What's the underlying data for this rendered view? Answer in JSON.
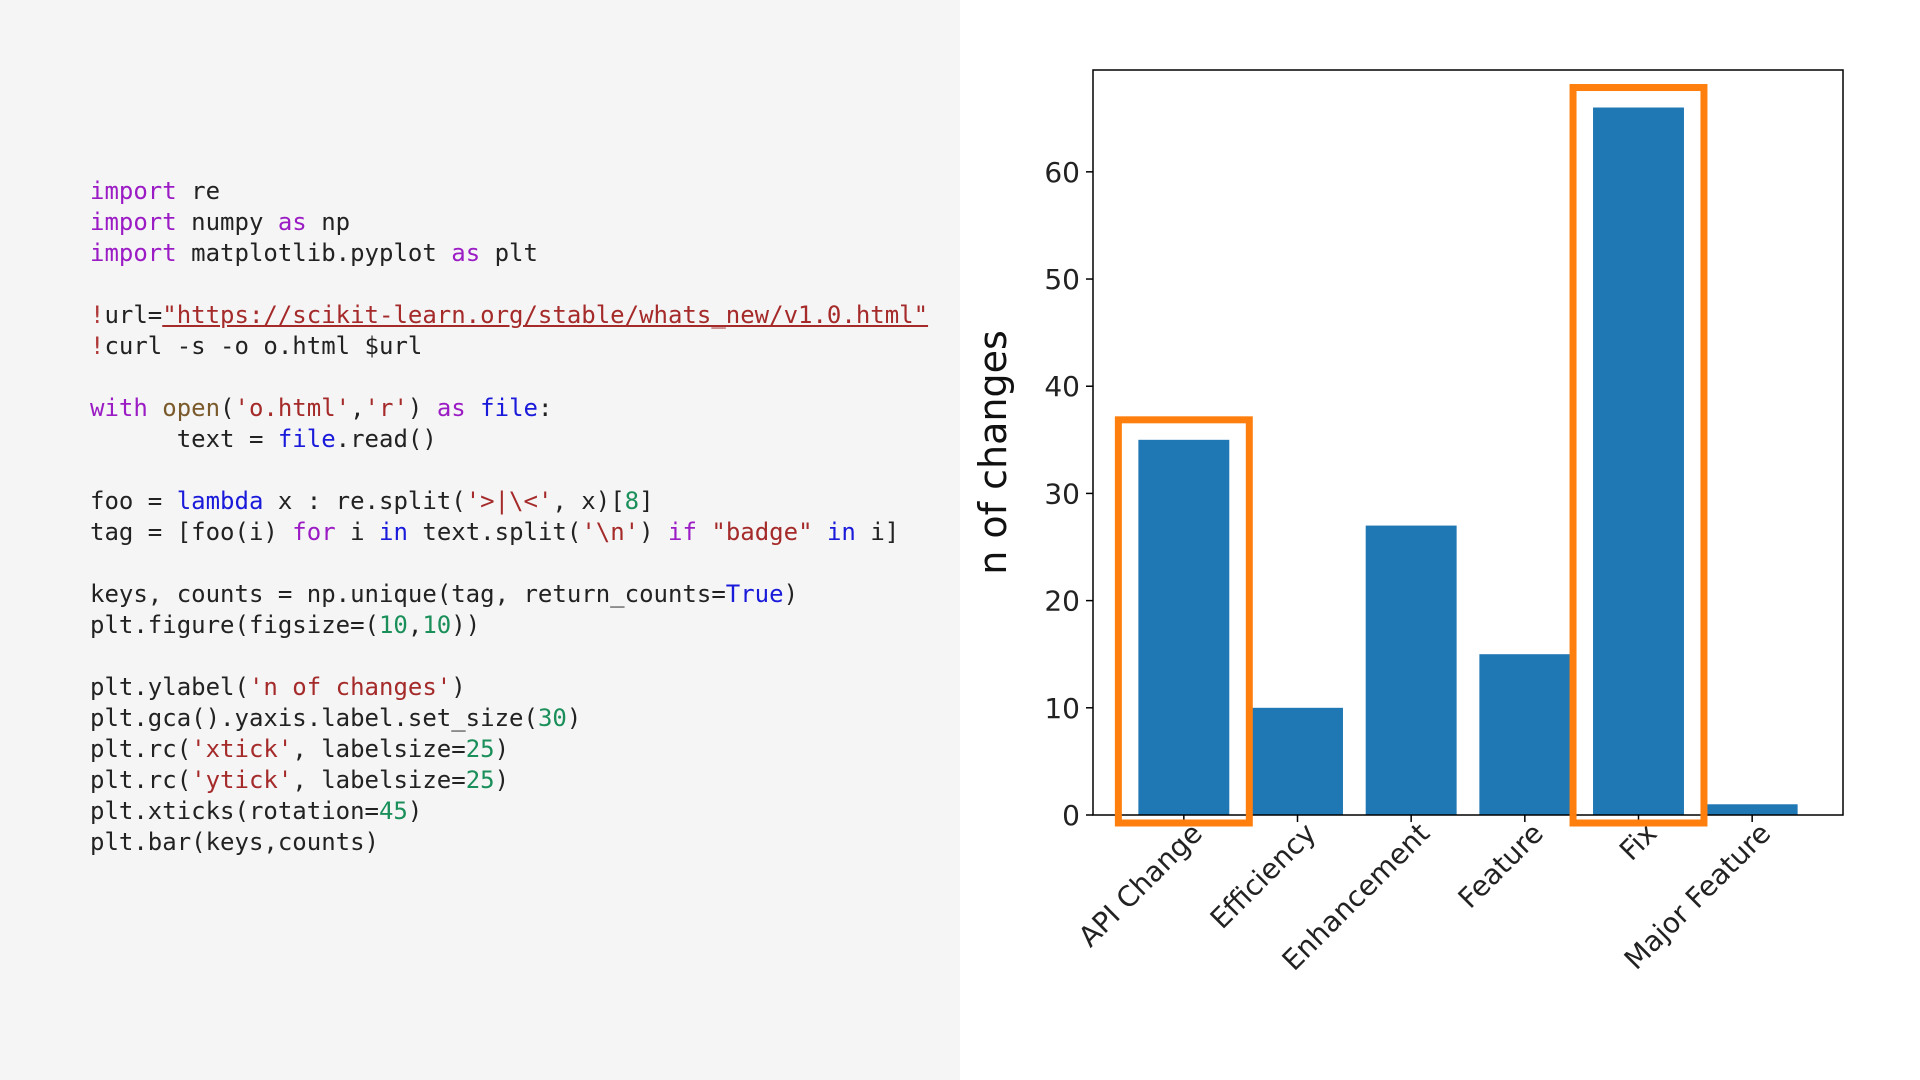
{
  "code": {
    "lines": [
      [
        {
          "t": "import",
          "c": "kw"
        },
        {
          "t": " re",
          "c": "p"
        }
      ],
      [
        {
          "t": "import",
          "c": "kw"
        },
        {
          "t": " numpy ",
          "c": "p"
        },
        {
          "t": "as",
          "c": "kw"
        },
        {
          "t": " np",
          "c": "p"
        }
      ],
      [
        {
          "t": "import",
          "c": "kw"
        },
        {
          "t": " matplotlib.pyplot ",
          "c": "p"
        },
        {
          "t": "as",
          "c": "kw"
        },
        {
          "t": " plt",
          "c": "p"
        }
      ],
      [],
      [
        {
          "t": "!",
          "c": "op"
        },
        {
          "t": "url=",
          "c": "p"
        },
        {
          "t": "\"https://scikit-learn.org/stable/whats_new/v1.0.html\"",
          "c": "url"
        }
      ],
      [
        {
          "t": "!",
          "c": "op"
        },
        {
          "t": "curl -s -o o.html $url",
          "c": "p"
        }
      ],
      [],
      [
        {
          "t": "with",
          "c": "kw"
        },
        {
          "t": " ",
          "c": "p"
        },
        {
          "t": "open",
          "c": "fn"
        },
        {
          "t": "(",
          "c": "p"
        },
        {
          "t": "'o.html'",
          "c": "str"
        },
        {
          "t": ",",
          "c": "p"
        },
        {
          "t": "'r'",
          "c": "str"
        },
        {
          "t": ") ",
          "c": "p"
        },
        {
          "t": "as",
          "c": "kw"
        },
        {
          "t": " ",
          "c": "p"
        },
        {
          "t": "file",
          "c": "var"
        },
        {
          "t": ":",
          "c": "p"
        }
      ],
      [
        {
          "t": "      text = ",
          "c": "p"
        },
        {
          "t": "file",
          "c": "var"
        },
        {
          "t": ".read()",
          "c": "p"
        }
      ],
      [],
      [
        {
          "t": "foo = ",
          "c": "p"
        },
        {
          "t": "lambda",
          "c": "bi"
        },
        {
          "t": " x : re.split(",
          "c": "p"
        },
        {
          "t": "'>|\\<'",
          "c": "str"
        },
        {
          "t": ", x)[",
          "c": "p"
        },
        {
          "t": "8",
          "c": "num"
        },
        {
          "t": "]",
          "c": "p"
        }
      ],
      [
        {
          "t": "tag = [foo(i) ",
          "c": "p"
        },
        {
          "t": "for",
          "c": "kw"
        },
        {
          "t": " i ",
          "c": "p"
        },
        {
          "t": "in",
          "c": "kw2"
        },
        {
          "t": " text.split(",
          "c": "p"
        },
        {
          "t": "'\\n'",
          "c": "str"
        },
        {
          "t": ") ",
          "c": "p"
        },
        {
          "t": "if",
          "c": "kw"
        },
        {
          "t": " ",
          "c": "p"
        },
        {
          "t": "\"badge\"",
          "c": "str"
        },
        {
          "t": " ",
          "c": "p"
        },
        {
          "t": "in",
          "c": "kw2"
        },
        {
          "t": " i]",
          "c": "p"
        }
      ],
      [],
      [
        {
          "t": "keys, counts = np.unique(tag, return_counts=",
          "c": "p"
        },
        {
          "t": "True",
          "c": "bi"
        },
        {
          "t": ")",
          "c": "p"
        }
      ],
      [
        {
          "t": "plt.figure(figsize=(",
          "c": "p"
        },
        {
          "t": "10",
          "c": "num"
        },
        {
          "t": ",",
          "c": "p"
        },
        {
          "t": "10",
          "c": "num"
        },
        {
          "t": "))",
          "c": "p"
        }
      ],
      [],
      [
        {
          "t": "plt.ylabel(",
          "c": "p"
        },
        {
          "t": "'n of changes'",
          "c": "str"
        },
        {
          "t": ")",
          "c": "p"
        }
      ],
      [
        {
          "t": "plt.gca().yaxis.label.set_size(",
          "c": "p"
        },
        {
          "t": "30",
          "c": "num"
        },
        {
          "t": ")",
          "c": "p"
        }
      ],
      [
        {
          "t": "plt.rc(",
          "c": "p"
        },
        {
          "t": "'xtick'",
          "c": "str"
        },
        {
          "t": ", labelsize=",
          "c": "p"
        },
        {
          "t": "25",
          "c": "num"
        },
        {
          "t": ")",
          "c": "p"
        }
      ],
      [
        {
          "t": "plt.rc(",
          "c": "p"
        },
        {
          "t": "'ytick'",
          "c": "str"
        },
        {
          "t": ", labelsize=",
          "c": "p"
        },
        {
          "t": "25",
          "c": "num"
        },
        {
          "t": ")",
          "c": "p"
        }
      ],
      [
        {
          "t": "plt.xticks(rotation=",
          "c": "p"
        },
        {
          "t": "45",
          "c": "num"
        },
        {
          "t": ")",
          "c": "p"
        }
      ],
      [
        {
          "t": "plt.bar(keys,counts)",
          "c": "p"
        }
      ]
    ],
    "colors": {
      "kw": "#9b1cc4",
      "kw2": "#1a1adb",
      "bi": "#1a1adb",
      "var": "#1a1adb",
      "fn": "#7a5a2b",
      "str": "#a52a2a",
      "url": "#a52a2a",
      "num": "#1a8f5a",
      "op": "#b03a3a",
      "p": "#222222"
    }
  },
  "chart_data": {
    "type": "bar",
    "categories": [
      "API Change",
      "Efficiency",
      "Enhancement",
      "Feature",
      "Fix",
      "Major Feature"
    ],
    "values": [
      35,
      10,
      27,
      15,
      66,
      1
    ],
    "ylabel": "n of changes",
    "xlabel": "",
    "title": "",
    "ylim": [
      0,
      69.5
    ],
    "yticks": [
      0,
      10,
      20,
      30,
      40,
      50,
      60
    ],
    "xtick_rotation": 45,
    "bar_color": "#1f77b4",
    "highlight_color": "#ff7f0e",
    "highlighted": [
      "API Change",
      "Fix"
    ],
    "grid": false,
    "legend": "none"
  }
}
